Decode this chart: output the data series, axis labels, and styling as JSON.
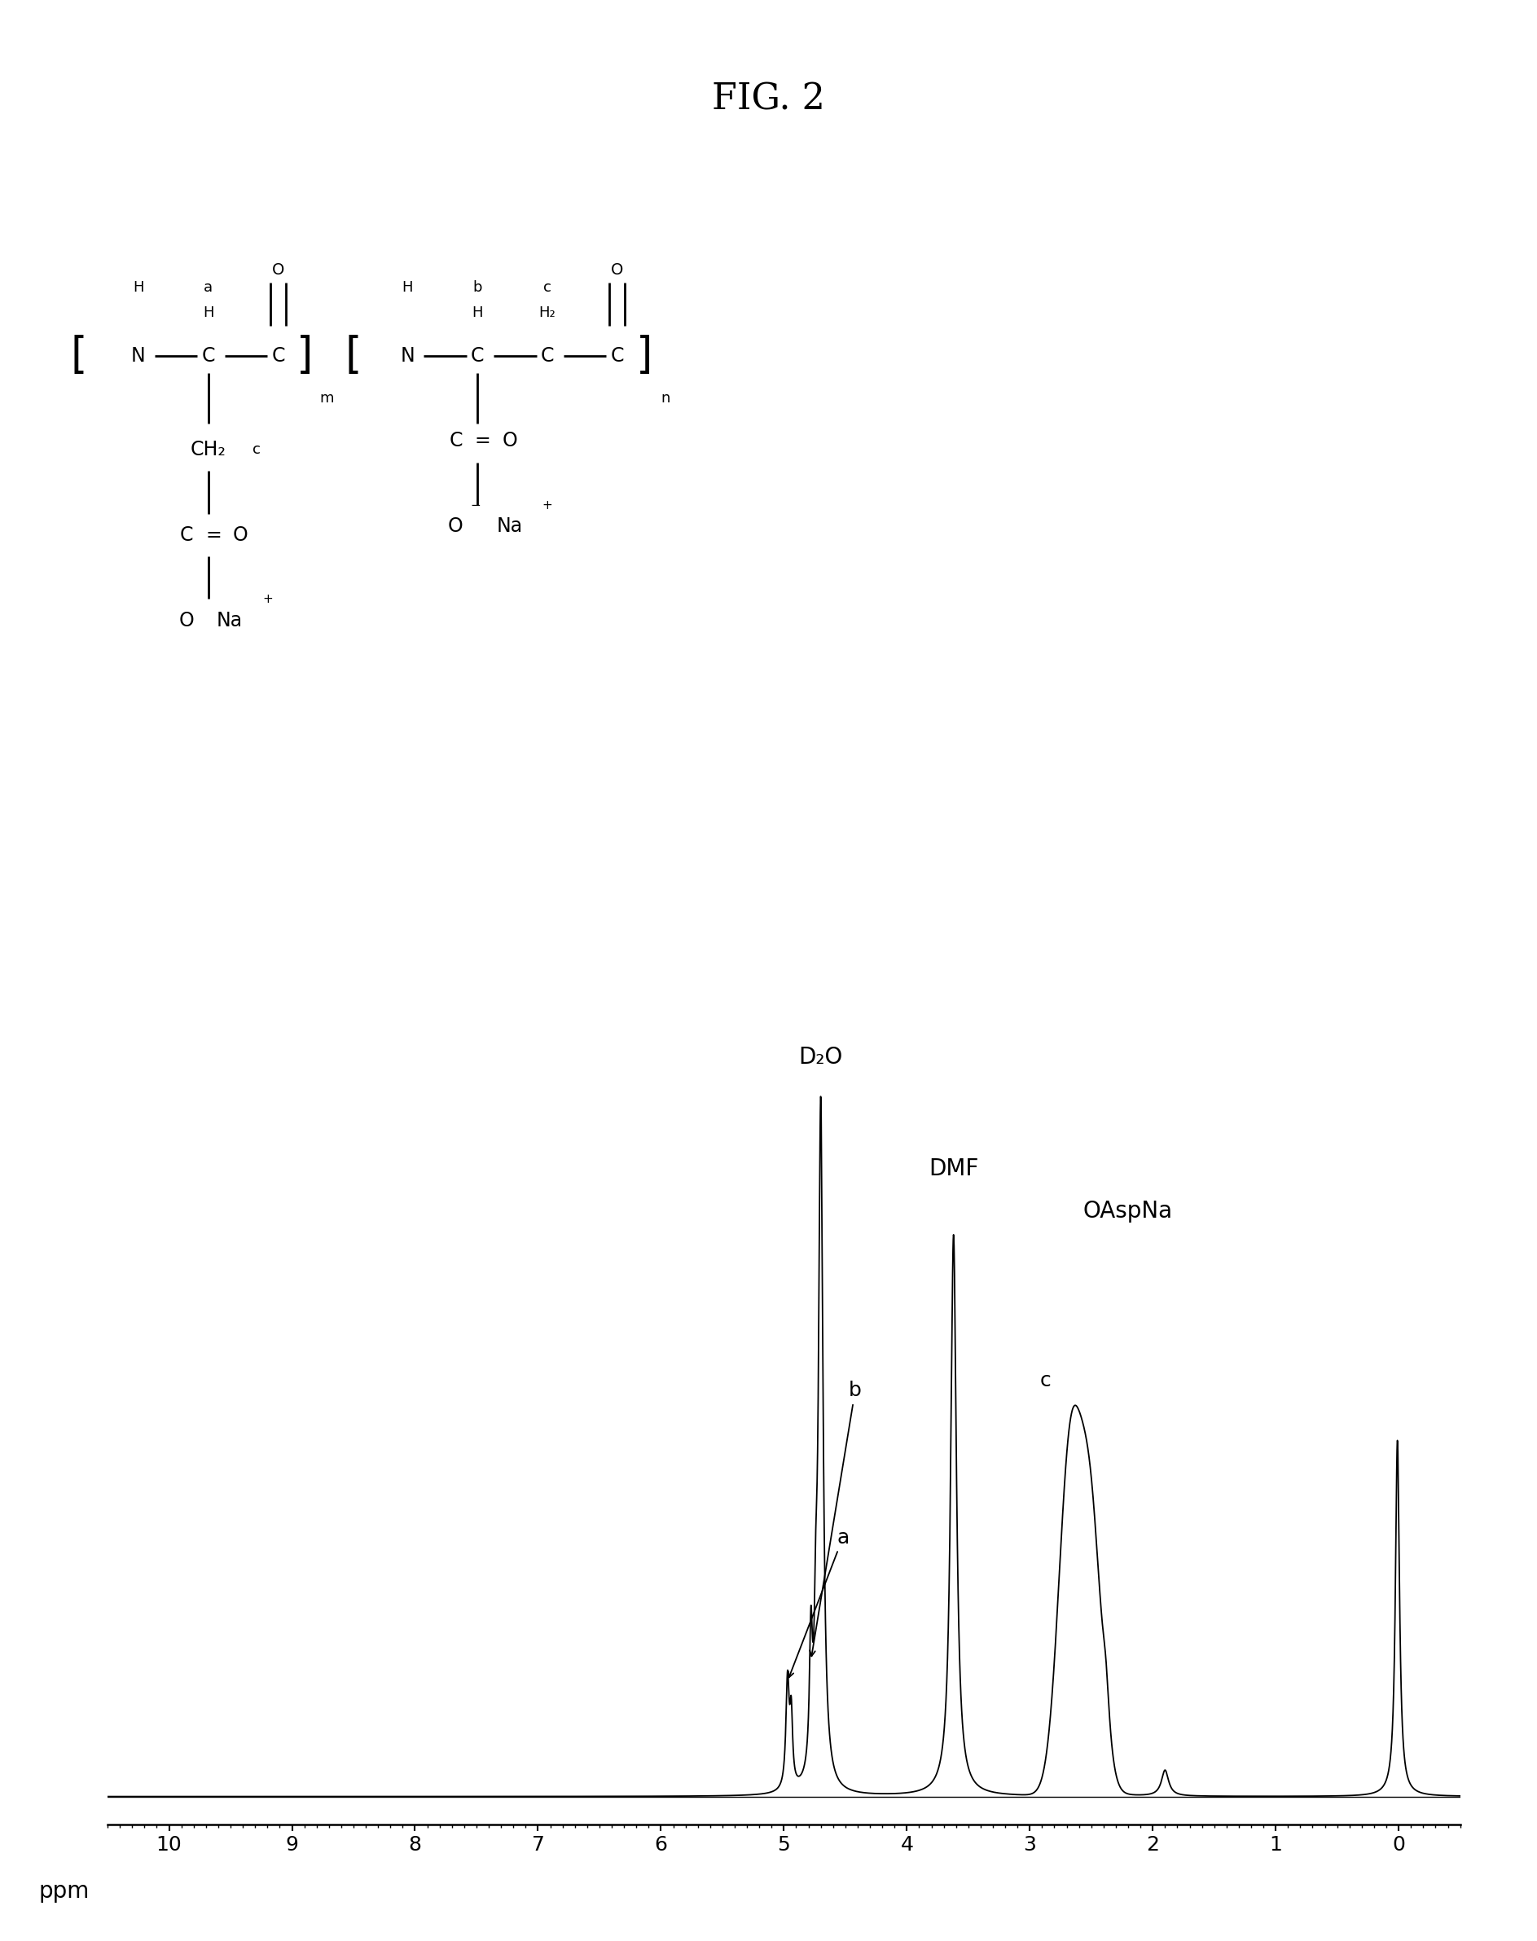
{
  "title": "FIG. 2",
  "title_fontsize": 32,
  "background_color": "#ffffff",
  "spectrum": {
    "xmin": -0.5,
    "xmax": 10.5,
    "xlabel": "ppm",
    "xlabel_fontsize": 20,
    "tick_fontsize": 18,
    "xticks": [
      0,
      1,
      2,
      3,
      4,
      5,
      6,
      7,
      8,
      9,
      10
    ]
  }
}
